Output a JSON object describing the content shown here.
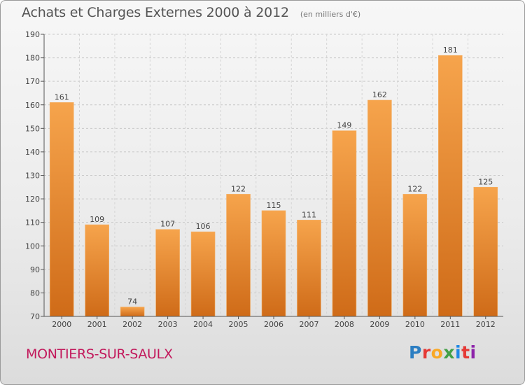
{
  "header": {
    "title": "Achats et Charges Externes 2000 à 2012",
    "unit": "(en milliers d'€)"
  },
  "footer": {
    "town": "MONTIERS-SUR-SAULX",
    "logo_letters": [
      "P",
      "r",
      "o",
      "x",
      "i",
      "t",
      "i"
    ],
    "logo_colors": [
      "#2c7ec2",
      "#e53935",
      "#f9a825",
      "#43a047",
      "#1e88e5",
      "#e53935",
      "#8e24aa"
    ]
  },
  "chart_data": {
    "type": "bar",
    "title": "Achats et Charges Externes 2000 à 2012",
    "subtitle": "(en milliers d'€)",
    "xlabel": "",
    "ylabel": "",
    "categories": [
      "2000",
      "2001",
      "2002",
      "2003",
      "2004",
      "2005",
      "2006",
      "2007",
      "2008",
      "2009",
      "2010",
      "2011",
      "2012"
    ],
    "values": [
      161,
      109,
      74,
      107,
      106,
      122,
      115,
      111,
      149,
      162,
      122,
      181,
      125
    ],
    "ylim": [
      70,
      190
    ],
    "yticks": [
      70,
      80,
      90,
      100,
      110,
      120,
      130,
      140,
      150,
      160,
      170,
      180,
      190
    ],
    "grid": true,
    "bar_color_top": "#f6a44c",
    "bar_color_bottom": "#cf6b18"
  }
}
